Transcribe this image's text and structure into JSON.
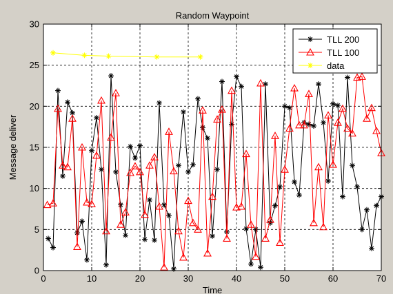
{
  "chart_data": {
    "type": "line",
    "title": "Random Waypoint",
    "xlabel": "Time",
    "ylabel": "Message deliver",
    "xlim": [
      0,
      70
    ],
    "ylim": [
      0,
      30
    ],
    "xticks": [
      0,
      10,
      20,
      30,
      40,
      50,
      60,
      70
    ],
    "yticks": [
      0,
      5,
      10,
      15,
      20,
      25,
      30
    ],
    "grid": true,
    "legend_position": "top-right",
    "series": [
      {
        "name": "TLL 200",
        "color": "#000000",
        "marker": "asterisk",
        "x": [
          1,
          2,
          3,
          4,
          5,
          6,
          7,
          8,
          9,
          10,
          11,
          12,
          13,
          14,
          15,
          16,
          17,
          18,
          19,
          20,
          21,
          22,
          23,
          24,
          25,
          26,
          27,
          28,
          29,
          30,
          31,
          32,
          33,
          34,
          35,
          36,
          37,
          38,
          39,
          40,
          41,
          42,
          43,
          44,
          45,
          46,
          47,
          48,
          49,
          50,
          51,
          52,
          53,
          54,
          55,
          56,
          57,
          58,
          59,
          60,
          61,
          62,
          63,
          64,
          65,
          66,
          67,
          68,
          69,
          70
        ],
        "values": [
          3.9,
          2.8,
          21.9,
          11.5,
          20.5,
          19.2,
          4.6,
          6.0,
          1.3,
          14.6,
          18.6,
          12.3,
          0.7,
          23.7,
          12.0,
          8.0,
          4.3,
          15.1,
          13.7,
          15.2,
          3.8,
          8.6,
          3.7,
          20.4,
          8.0,
          6.7,
          0.2,
          12.8,
          19.3,
          12.0,
          12.9,
          20.9,
          17.4,
          16.1,
          4.2,
          12.3,
          23.0,
          4.7,
          17.8,
          23.6,
          22.4,
          5.1,
          0.8,
          5.0,
          0.4,
          22.7,
          5.8,
          7.9,
          10.2,
          20.0,
          19.8,
          10.8,
          9.2,
          18.0,
          17.8,
          17.6,
          22.7,
          18.0,
          10.9,
          20.3,
          20.1,
          9.0,
          23.5,
          12.8,
          10.2,
          5.0,
          7.4,
          2.7,
          7.9,
          9.0
        ]
      },
      {
        "name": "TLL 100",
        "color": "#ff0000",
        "marker": "triangle",
        "x": [
          0.8,
          2,
          3,
          4,
          5,
          6,
          7,
          8,
          9,
          10,
          11,
          12,
          13,
          14,
          15,
          16,
          17,
          18,
          19,
          20,
          21,
          22,
          23,
          24,
          25,
          26,
          27,
          28,
          29,
          30,
          31,
          32,
          33,
          34,
          35,
          36,
          37,
          38,
          39,
          40,
          41,
          42,
          43,
          44,
          45,
          46,
          47,
          48,
          49,
          50,
          51,
          52,
          53,
          54,
          55,
          56,
          57,
          58,
          59,
          60,
          61,
          62,
          63,
          64,
          65,
          66,
          67,
          68,
          69,
          70
        ],
        "values": [
          8.0,
          8.2,
          19.7,
          12.8,
          12.6,
          18.5,
          2.9,
          15.0,
          8.3,
          8.1,
          14.0,
          20.7,
          4.8,
          16.2,
          21.6,
          5.6,
          7.1,
          11.9,
          12.7,
          12.0,
          6.8,
          12.8,
          13.8,
          7.8,
          0.4,
          16.9,
          12.1,
          4.8,
          1.6,
          8.5,
          5.8,
          5.0,
          19.5,
          2.1,
          9.0,
          18.4,
          19.6,
          3.9,
          21.9,
          7.7,
          7.8,
          14.2,
          5.6,
          1.7,
          22.8,
          3.9,
          6.2,
          16.4,
          3.4,
          12.3,
          17.3,
          22.2,
          17.7,
          17.7,
          21.5,
          5.8,
          12.6,
          5.3,
          18.9,
          12.9,
          18.0,
          19.7,
          17.3,
          16.7,
          23.5,
          23.6,
          18.5,
          19.8,
          17.0,
          14.3
        ]
      },
      {
        "name": "data",
        "color": "#ffff00",
        "marker": "asterisk",
        "x": [
          2,
          8.5,
          13.5,
          23.5,
          32.5
        ],
        "values": [
          26.5,
          26.2,
          26.1,
          26.0,
          26.0
        ]
      }
    ]
  }
}
